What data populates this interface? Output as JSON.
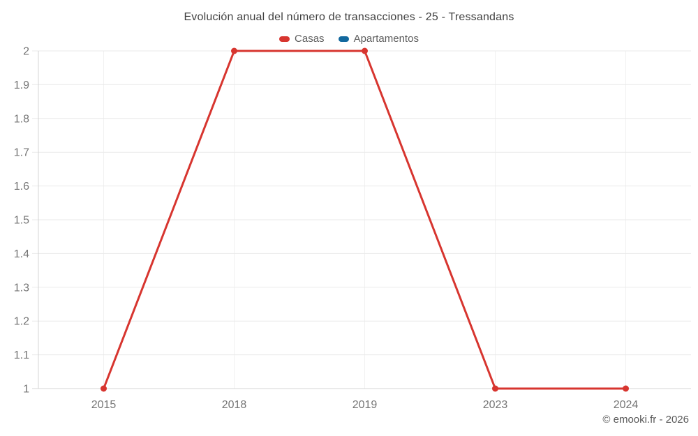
{
  "chart": {
    "title": "Evolución anual del número de transacciones - 25 - Tressandans",
    "copyright": "© emooki.fr - 2026"
  },
  "legend": {
    "items": [
      {
        "label": "Casas",
        "color": "#d7352f"
      },
      {
        "label": "Apartamentos",
        "color": "#12689e"
      }
    ]
  },
  "chart_data": {
    "type": "line",
    "title": "Evolución anual del número de transacciones - 25 - Tressandans",
    "categories": [
      "2015",
      "2018",
      "2019",
      "2023",
      "2024"
    ],
    "series": [
      {
        "name": "Casas",
        "color": "#d7352f",
        "values": [
          1,
          2,
          2,
          1,
          1
        ]
      },
      {
        "name": "Apartamentos",
        "color": "#12689e",
        "values": []
      }
    ],
    "xlabel": "",
    "ylabel": "",
    "ylim": [
      1,
      2
    ],
    "ytick_values": [
      1,
      1.1,
      1.2,
      1.3,
      1.4,
      1.5,
      1.6,
      1.7,
      1.8,
      1.9,
      2
    ],
    "yticks": [
      "1",
      "1.1",
      "1.2",
      "1.3",
      "1.4",
      "1.5",
      "1.6",
      "1.7",
      "1.8",
      "1.9",
      "2"
    ],
    "grid": true,
    "legend_position": "top",
    "colors": {
      "grid_horizontal": "#e9e9e9",
      "grid_vertical": "#f1f1f1",
      "axis": "#d4d4d4",
      "tick_label": "#757575"
    }
  }
}
